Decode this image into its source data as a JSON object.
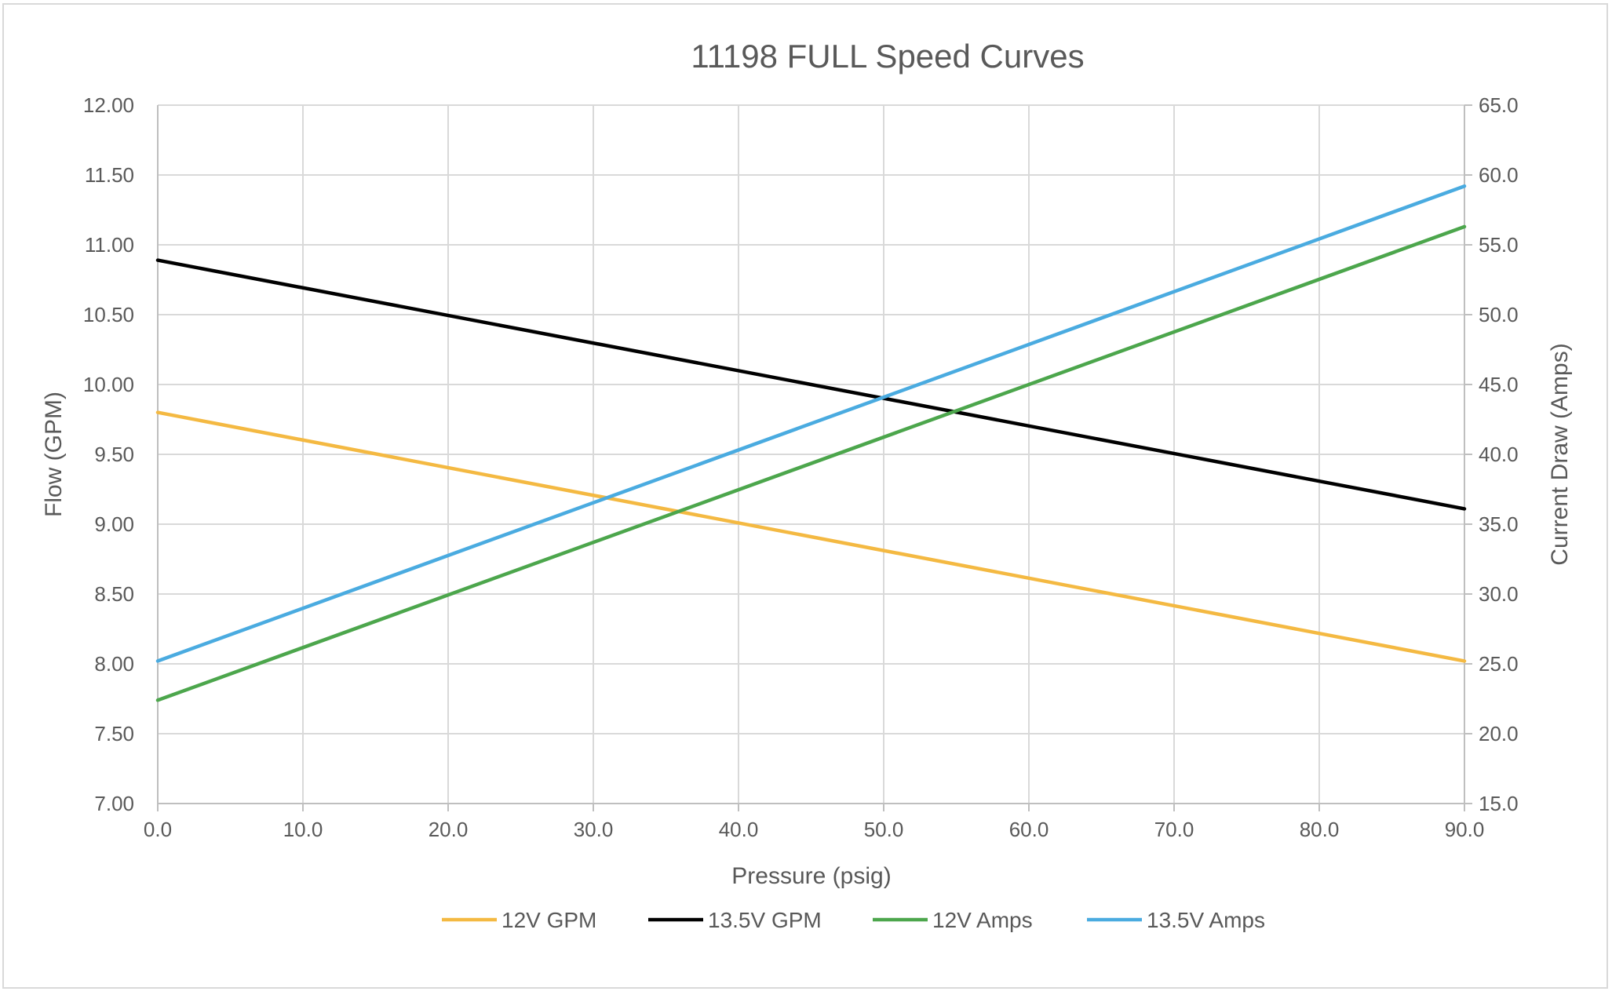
{
  "chart_data": {
    "type": "line",
    "title": "11198 FULL Speed Curves",
    "xlabel": "Pressure (psig)",
    "ylabel_left": "Flow (GPM)",
    "ylabel_right": "Current Draw (Amps)",
    "xlim": [
      0,
      90
    ],
    "ylim_left": [
      7.0,
      12.0
    ],
    "ylim_right": [
      15.0,
      65.0
    ],
    "x_ticks": [
      "0.0",
      "10.0",
      "20.0",
      "30.0",
      "40.0",
      "50.0",
      "60.0",
      "70.0",
      "80.0",
      "90.0"
    ],
    "y_ticks_left": [
      "7.00",
      "7.50",
      "8.00",
      "8.50",
      "9.00",
      "9.50",
      "10.00",
      "10.50",
      "11.00",
      "11.50",
      "12.00"
    ],
    "y_ticks_right": [
      "15.0",
      "20.0",
      "25.0",
      "30.0",
      "35.0",
      "40.0",
      "45.0",
      "50.0",
      "55.0",
      "60.0",
      "65.0"
    ],
    "grid": true,
    "legend_position": "bottom",
    "series": [
      {
        "name": "12V GPM",
        "axis": "left",
        "color": "#F4B942",
        "x": [
          0,
          90
        ],
        "y": [
          9.8,
          8.02
        ]
      },
      {
        "name": "13.5V GPM",
        "axis": "left",
        "color": "#000000",
        "x": [
          0,
          90
        ],
        "y": [
          10.89,
          9.11
        ]
      },
      {
        "name": "12V Amps",
        "axis": "right",
        "color": "#4CA64C",
        "x": [
          0,
          90
        ],
        "y": [
          22.4,
          56.3
        ]
      },
      {
        "name": "13.5V Amps",
        "axis": "right",
        "color": "#4AABE0",
        "x": [
          0,
          90
        ],
        "y": [
          25.2,
          59.2
        ]
      }
    ]
  }
}
